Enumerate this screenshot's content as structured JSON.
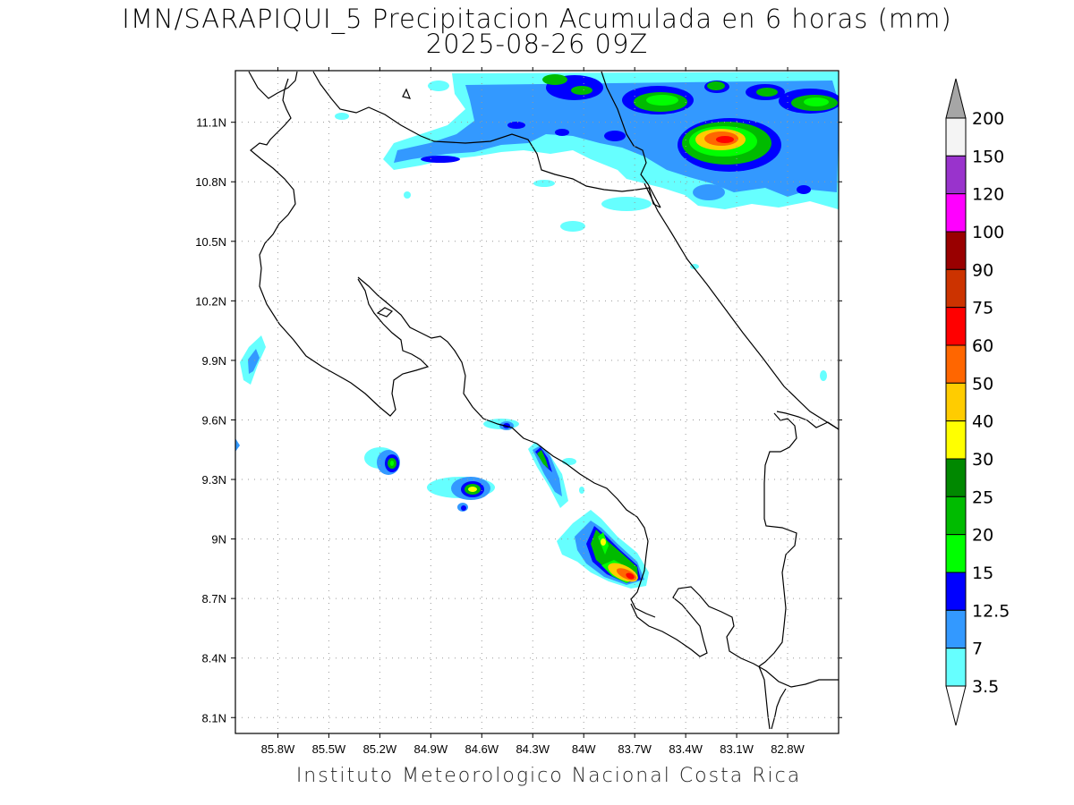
{
  "title": {
    "line1": "IMN/SARAPIQUI_5 Precipitacion Acumulada en 6 horas (mm)",
    "line2": "2025-08-26 09Z"
  },
  "credit": "Instituto Meteorologico Nacional Costa Rica",
  "map": {
    "lon_range": [
      -86.05,
      -82.5
    ],
    "lat_range": [
      8.02,
      11.36
    ],
    "x_ticks": [
      "85.8W",
      "85.5W",
      "85.2W",
      "84.9W",
      "84.6W",
      "84.3W",
      "84W",
      "83.7W",
      "83.4W",
      "83.1W",
      "82.8W"
    ],
    "x_tick_lons": [
      -85.8,
      -85.5,
      -85.2,
      -84.9,
      -84.6,
      -84.3,
      -84.0,
      -83.7,
      -83.4,
      -83.1,
      -82.8
    ],
    "y_ticks": [
      "11.1N",
      "10.8N",
      "10.5N",
      "10.2N",
      "9.9N",
      "9.6N",
      "9.3N",
      "9N",
      "8.7N",
      "8.4N",
      "8.1N"
    ],
    "y_tick_lats": [
      11.1,
      10.8,
      10.5,
      10.2,
      9.9,
      9.6,
      9.3,
      9.0,
      8.7,
      8.4,
      8.1
    ],
    "grid": "dotted"
  },
  "legend": {
    "labels": [
      "200",
      "150",
      "120",
      "100",
      "90",
      "75",
      "60",
      "50",
      "40",
      "30",
      "25",
      "20",
      "15",
      "12.5",
      "7",
      "3.5"
    ],
    "colors": [
      "#f4f4f4",
      "#9933cc",
      "#ff00ff",
      "#990000",
      "#cc3300",
      "#ff0000",
      "#ff6600",
      "#ffcc00",
      "#ffff00",
      "#008800",
      "#00bb00",
      "#00ff00",
      "#0000ff",
      "#3399ff",
      "#66ffff"
    ],
    "over_color": "#a6a6a6",
    "under_color": "#ffffff"
  }
}
